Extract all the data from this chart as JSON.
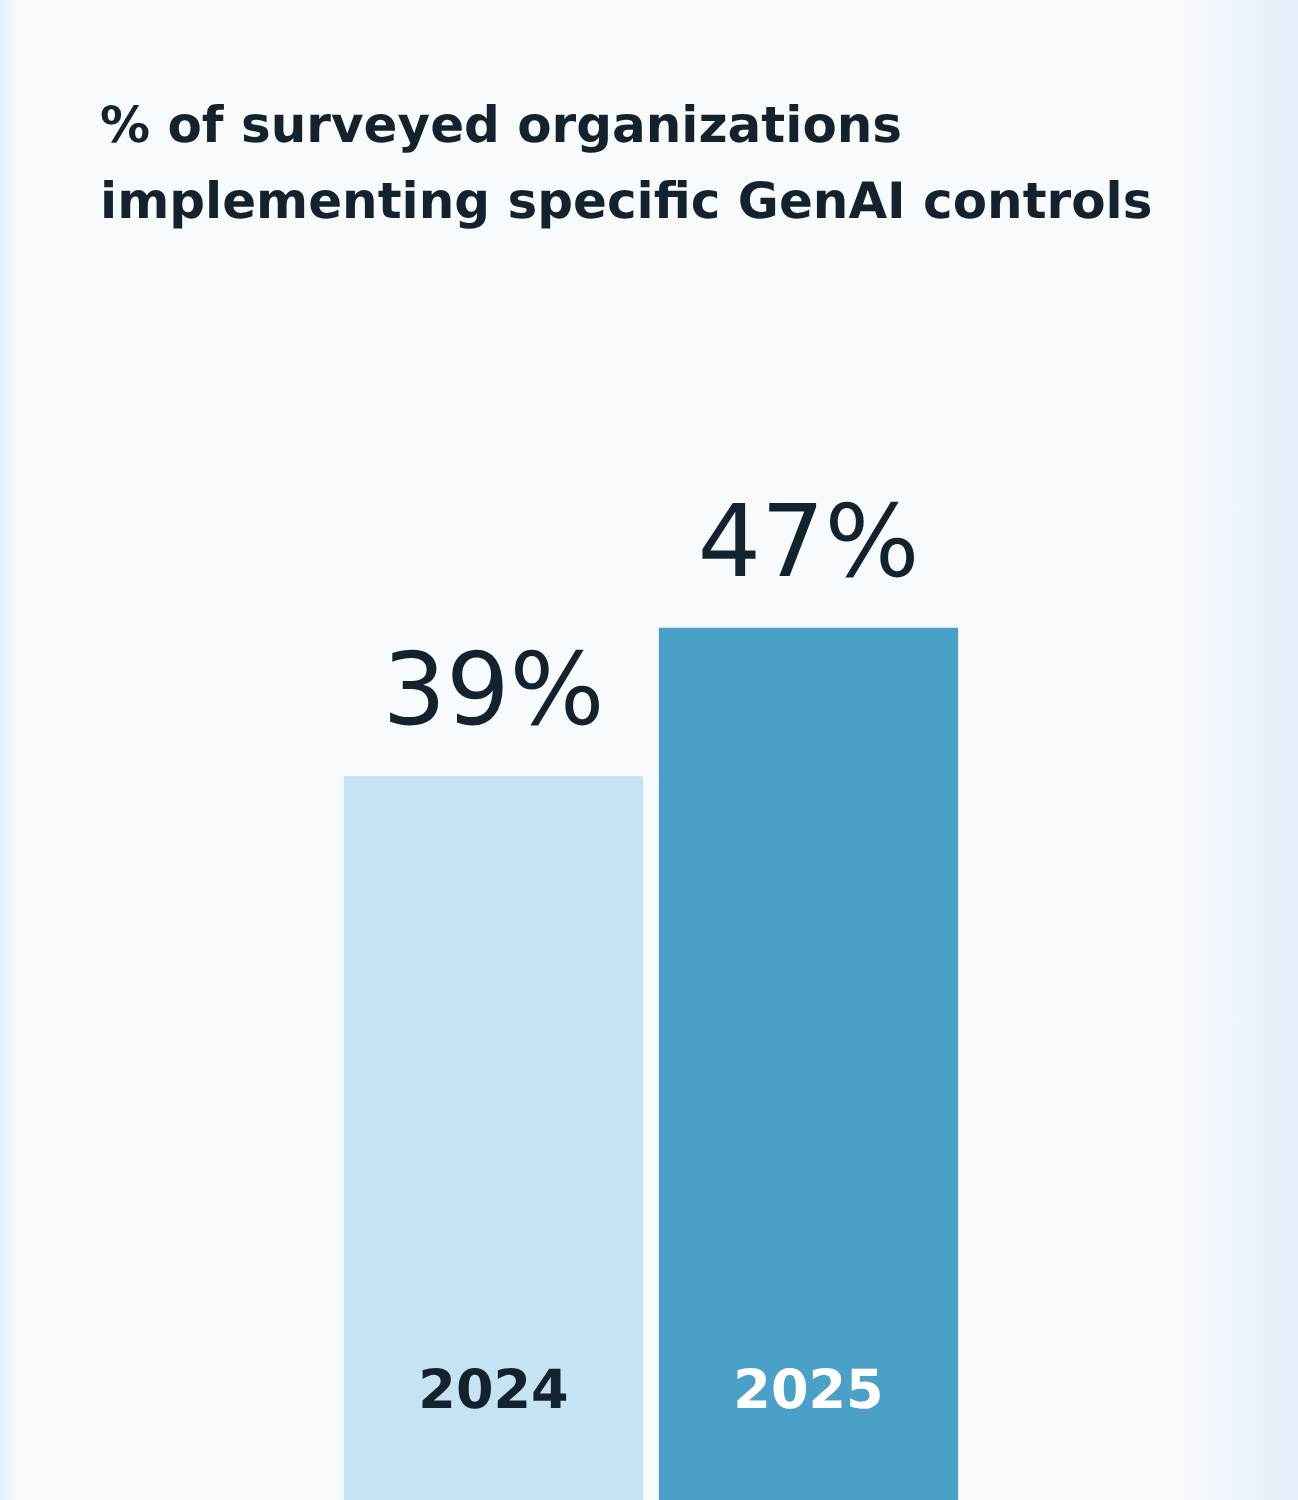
{
  "chart_data": {
    "type": "bar",
    "title": "% of surveyed organizations implementing specific GenAI controls",
    "categories": [
      "2024",
      "2025"
    ],
    "values": [
      39,
      47
    ],
    "colors": [
      "#c6e3f3",
      "#4aa0c6"
    ],
    "value_labels": [
      "39%",
      "47%"
    ],
    "tick_labels": "x"
  }
}
